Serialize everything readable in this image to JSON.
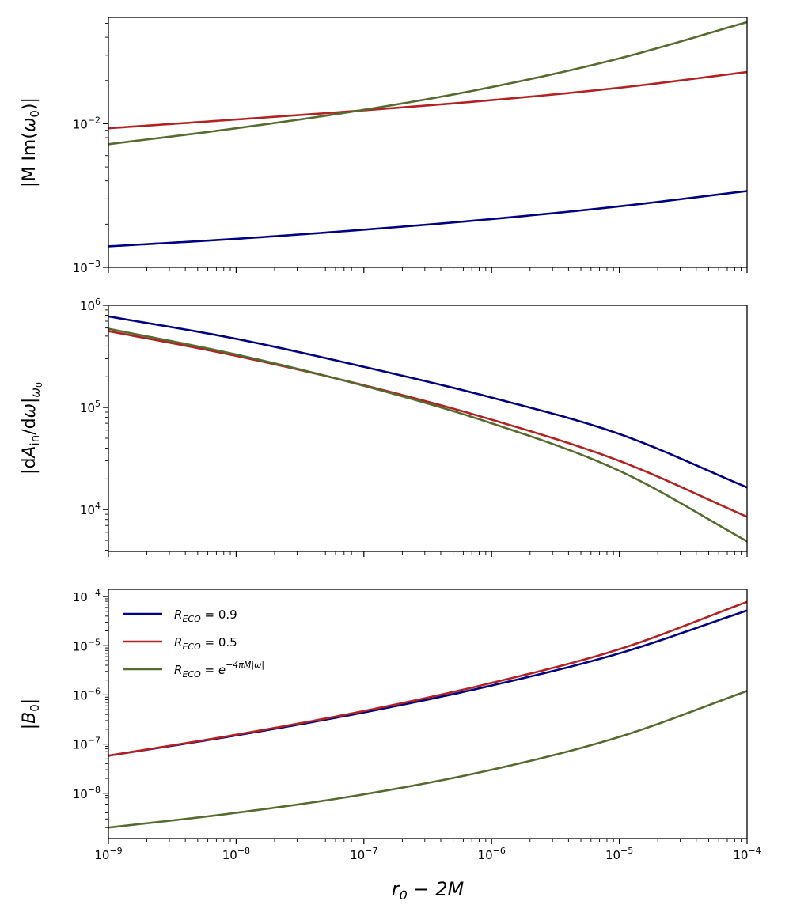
{
  "chart_data": [
    {
      "type": "line",
      "panel": "top",
      "ylabel": "|M Im(ω₀)|",
      "xscale": "log",
      "yscale": "log",
      "xlim": [
        1e-09,
        0.0001
      ],
      "ylim": [
        0.001,
        0.055
      ],
      "x": [
        1e-09,
        1e-08,
        1e-07,
        1e-06,
        1e-05,
        0.0001
      ],
      "yticks": [
        {
          "value": 0.01,
          "base": "10",
          "exp": "−2"
        },
        {
          "value": 0.001,
          "base": "10",
          "exp": "−3"
        }
      ],
      "series": [
        {
          "name": "R_ECO = 0.9",
          "color": "#000080",
          "values": [
            0.0014,
            0.00158,
            0.00183,
            0.00217,
            0.00266,
            0.0034
          ]
        },
        {
          "name": "R_ECO = 0.5",
          "color": "#b22222",
          "values": [
            0.0093,
            0.0107,
            0.0124,
            0.0146,
            0.0178,
            0.0229
          ]
        },
        {
          "name": "R_ECO = e^{−4πM|ω|}",
          "color": "#556b2f",
          "values": [
            0.0072,
            0.0093,
            0.0125,
            0.018,
            0.0285,
            0.051
          ]
        }
      ]
    },
    {
      "type": "line",
      "panel": "middle",
      "ylabel": "|dA_in/dω|_ω₀",
      "xscale": "log",
      "yscale": "log",
      "xlim": [
        1e-09,
        0.0001
      ],
      "ylim": [
        3900,
        1000000
      ],
      "x": [
        1e-09,
        1e-08,
        1e-07,
        1e-06,
        1e-05,
        0.0001
      ],
      "yticks": [
        {
          "value": 1000000,
          "base": "10",
          "exp": "6"
        },
        {
          "value": 100000,
          "base": "10",
          "exp": "5"
        },
        {
          "value": 10000,
          "base": "10",
          "exp": "4"
        }
      ],
      "series": [
        {
          "name": "R_ECO = 0.9",
          "color": "#000080",
          "values": [
            780000,
            470000,
            250000,
            125000,
            55000,
            16500
          ]
        },
        {
          "name": "R_ECO = 0.5",
          "color": "#b22222",
          "values": [
            560000,
            320000,
            165000,
            76000,
            30000,
            8500
          ]
        },
        {
          "name": "R_ECO = e^{−4πM|ω|}",
          "color": "#556b2f",
          "values": [
            590000,
            330000,
            163000,
            70000,
            24000,
            4900
          ]
        }
      ]
    },
    {
      "type": "line",
      "panel": "bottom",
      "ylabel": "|B₀|",
      "xlabel": "r₀ − 2M",
      "xscale": "log",
      "yscale": "log",
      "xlim": [
        1e-09,
        0.0001
      ],
      "ylim": [
        1.2e-09,
        0.00014
      ],
      "x": [
        1e-09,
        1e-08,
        1e-07,
        1e-06,
        1e-05,
        0.0001
      ],
      "xticks": [
        {
          "value": 1e-09,
          "base": "10",
          "exp": "−9"
        },
        {
          "value": 1e-08,
          "base": "10",
          "exp": "−8"
        },
        {
          "value": 1e-07,
          "base": "10",
          "exp": "−7"
        },
        {
          "value": 1e-06,
          "base": "10",
          "exp": "−6"
        },
        {
          "value": 1e-05,
          "base": "10",
          "exp": "−5"
        },
        {
          "value": 0.0001,
          "base": "10",
          "exp": "−4"
        }
      ],
      "yticks": [
        {
          "value": 0.0001,
          "base": "10",
          "exp": "−4"
        },
        {
          "value": 1e-05,
          "base": "10",
          "exp": "−5"
        },
        {
          "value": 1e-06,
          "base": "10",
          "exp": "−6"
        },
        {
          "value": 1e-07,
          "base": "10",
          "exp": "−7"
        },
        {
          "value": 1e-08,
          "base": "10",
          "exp": "−8"
        }
      ],
      "legend": {
        "placement": "upper-left",
        "entries": [
          {
            "label": "R_ECO = 0.9",
            "color": "#000080"
          },
          {
            "label": "R_ECO = 0.5",
            "color": "#b22222"
          },
          {
            "label": "R_ECO = e^{−4πM|ω|}",
            "color": "#556b2f"
          }
        ]
      },
      "series": [
        {
          "name": "R_ECO = 0.9",
          "color": "#000080",
          "values": [
            5.8e-08,
            1.5e-07,
            4.4e-07,
            1.55e-06,
            7e-06,
            5.2e-05
          ]
        },
        {
          "name": "R_ECO = 0.5",
          "color": "#b22222",
          "values": [
            5.8e-08,
            1.55e-07,
            4.7e-07,
            1.75e-06,
            8.5e-06,
            7.8e-05
          ]
        },
        {
          "name": "R_ECO = e^{−4πM|ω|}",
          "color": "#556b2f",
          "values": [
            2e-09,
            4e-09,
            9.5e-09,
            3e-08,
            1.4e-07,
            1.2e-06
          ]
        }
      ]
    }
  ]
}
